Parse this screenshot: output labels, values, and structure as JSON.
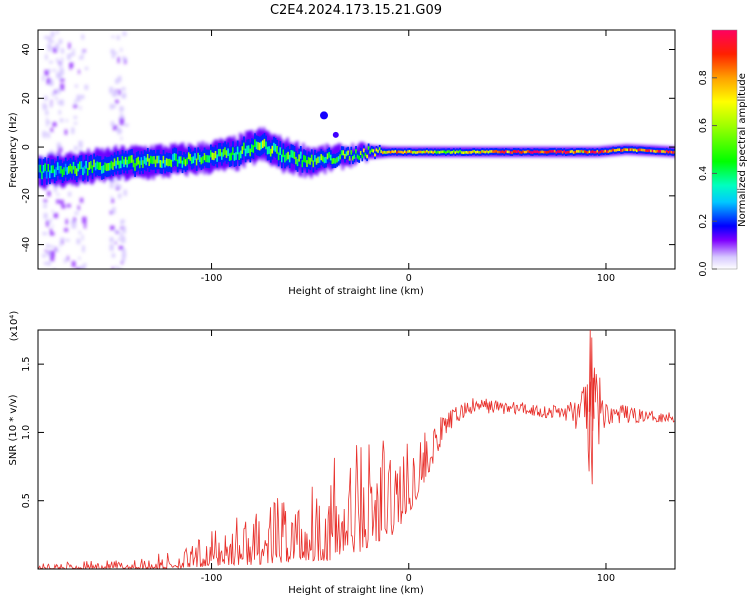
{
  "title": "C2E4.2024.173.15.21.G09",
  "chart_data": [
    {
      "type": "heatmap",
      "xlabel": "Height of straight line (km)",
      "ylabel": "Frequency (Hz)",
      "xlim": [
        -188,
        135
      ],
      "ylim": [
        -50,
        48
      ],
      "x_ticks": [
        {
          "value": -100,
          "label": "-100"
        },
        {
          "value": 0,
          "label": "0"
        },
        {
          "value": 100,
          "label": "100"
        }
      ],
      "y_ticks": [
        {
          "value": -40,
          "label": "-40"
        },
        {
          "value": -20,
          "label": "-20"
        },
        {
          "value": 0,
          "label": "0"
        },
        {
          "value": 20,
          "label": "20"
        },
        {
          "value": 40,
          "label": "40"
        }
      ],
      "colorbar": {
        "label": "Normalized spectral amplitude",
        "range": [
          0,
          1
        ],
        "ticks": [
          {
            "value": 0.0,
            "label": "0.0"
          },
          {
            "value": 0.2,
            "label": "0.2"
          },
          {
            "value": 0.4,
            "label": "0.4"
          },
          {
            "value": 0.6,
            "label": "0.6"
          },
          {
            "value": 0.8,
            "label": "0.8"
          }
        ]
      },
      "ridge": [
        {
          "x": -188,
          "freq": -10,
          "width": 4.5,
          "amp": 0.3
        },
        {
          "x": -170,
          "freq": -9,
          "width": 4.5,
          "amp": 0.42
        },
        {
          "x": -150,
          "freq": -7,
          "width": 4.5,
          "amp": 0.45
        },
        {
          "x": -130,
          "freq": -6,
          "width": 4.5,
          "amp": 0.45
        },
        {
          "x": -110,
          "freq": -5,
          "width": 4.0,
          "amp": 0.45
        },
        {
          "x": -90,
          "freq": -3,
          "width": 4.5,
          "amp": 0.48
        },
        {
          "x": -75,
          "freq": 1,
          "width": 4.5,
          "amp": 0.5
        },
        {
          "x": -65,
          "freq": -3,
          "width": 4.5,
          "amp": 0.5
        },
        {
          "x": -50,
          "freq": -6,
          "width": 4.0,
          "amp": 0.45
        },
        {
          "x": -35,
          "freq": -4,
          "width": 3.0,
          "amp": 0.45
        },
        {
          "x": -20,
          "freq": -2,
          "width": 2.0,
          "amp": 0.6
        },
        {
          "x": -10,
          "freq": -2,
          "width": 1.5,
          "amp": 0.8
        },
        {
          "x": 0,
          "freq": -2,
          "width": 1.5,
          "amp": 0.75
        },
        {
          "x": 20,
          "freq": -2,
          "width": 1.5,
          "amp": 0.55
        },
        {
          "x": 50,
          "freq": -2,
          "width": 1.5,
          "amp": 0.85
        },
        {
          "x": 75,
          "freq": -2,
          "width": 1.5,
          "amp": 0.95
        },
        {
          "x": 85,
          "freq": -2,
          "width": 1.5,
          "amp": 0.7
        },
        {
          "x": 95,
          "freq": -2,
          "width": 1.5,
          "amp": 0.95
        },
        {
          "x": 110,
          "freq": -1,
          "width": 1.5,
          "amp": 0.8
        },
        {
          "x": 135,
          "freq": -2,
          "width": 1.5,
          "amp": 0.9
        }
      ]
    },
    {
      "type": "line",
      "xlabel": "Height of straight line (km)",
      "ylabel": "SNR (10 * v/v)",
      "y_multiplier": "(x10⁴)",
      "xlim": [
        -188,
        135
      ],
      "ylim": [
        0,
        1.75
      ],
      "x_ticks": [
        {
          "value": -100,
          "label": "-100"
        },
        {
          "value": 0,
          "label": "0"
        },
        {
          "value": 100,
          "label": "100"
        }
      ],
      "y_ticks": [
        {
          "value": 0.5,
          "label": "0.5"
        },
        {
          "value": 1.0,
          "label": "1.0"
        },
        {
          "value": 1.5,
          "label": "1.5"
        }
      ],
      "color": "#e8302b",
      "envelope": [
        {
          "x": -188,
          "low": 0.0,
          "high": 0.04
        },
        {
          "x": -160,
          "low": 0.0,
          "high": 0.06
        },
        {
          "x": -140,
          "low": 0.0,
          "high": 0.07
        },
        {
          "x": -125,
          "low": 0.0,
          "high": 0.12
        },
        {
          "x": -110,
          "low": 0.01,
          "high": 0.17
        },
        {
          "x": -100,
          "low": 0.02,
          "high": 0.3
        },
        {
          "x": -90,
          "low": 0.03,
          "high": 0.4
        },
        {
          "x": -80,
          "low": 0.03,
          "high": 0.42
        },
        {
          "x": -70,
          "low": 0.04,
          "high": 0.48
        },
        {
          "x": -60,
          "low": 0.05,
          "high": 0.62
        },
        {
          "x": -50,
          "low": 0.06,
          "high": 0.68
        },
        {
          "x": -40,
          "low": 0.06,
          "high": 0.8
        },
        {
          "x": -30,
          "low": 0.1,
          "high": 0.95
        },
        {
          "x": -20,
          "low": 0.15,
          "high": 1.05
        },
        {
          "x": -10,
          "low": 0.22,
          "high": 1.05
        },
        {
          "x": 0,
          "low": 0.4,
          "high": 0.95
        },
        {
          "x": 10,
          "low": 0.7,
          "high": 1.05
        },
        {
          "x": 20,
          "low": 1.0,
          "high": 1.15
        },
        {
          "x": 30,
          "low": 1.12,
          "high": 1.25
        },
        {
          "x": 40,
          "low": 1.14,
          "high": 1.25
        },
        {
          "x": 50,
          "low": 1.13,
          "high": 1.23
        },
        {
          "x": 60,
          "low": 1.12,
          "high": 1.22
        },
        {
          "x": 70,
          "low": 1.1,
          "high": 1.2
        },
        {
          "x": 80,
          "low": 1.08,
          "high": 1.22
        },
        {
          "x": 88,
          "low": 0.98,
          "high": 1.3
        },
        {
          "x": 92,
          "low": 0.62,
          "high": 1.75
        },
        {
          "x": 100,
          "low": 1.06,
          "high": 1.22
        },
        {
          "x": 110,
          "low": 1.06,
          "high": 1.2
        },
        {
          "x": 120,
          "low": 1.08,
          "high": 1.16
        },
        {
          "x": 135,
          "low": 1.07,
          "high": 1.15
        }
      ]
    }
  ]
}
